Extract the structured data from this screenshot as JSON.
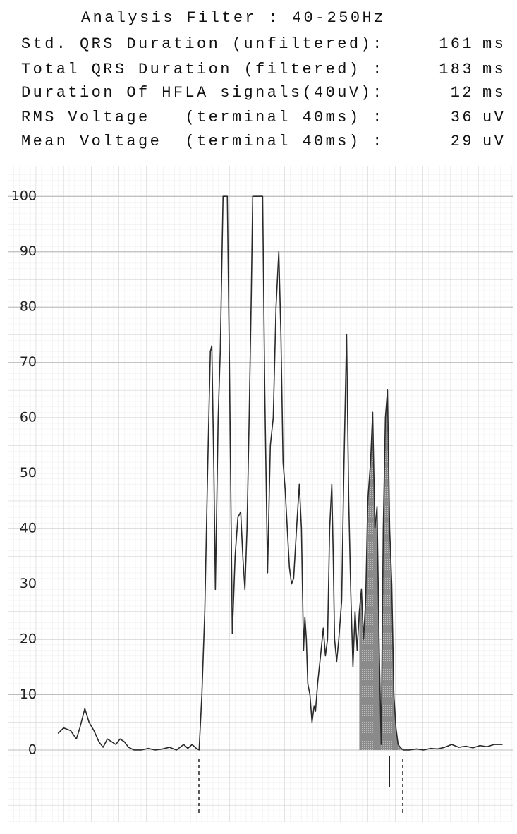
{
  "header": {
    "title": "Analysis Filter : 40-250Hz",
    "rows": [
      {
        "label": "Std. QRS Duration (unfiltered):",
        "value": 161,
        "unit": "ms"
      },
      {
        "label": "Total QRS Duration (filtered) :",
        "value": 183,
        "unit": "ms"
      },
      {
        "label": "Duration Of HFLA signals(40uV):",
        "value": 12,
        "unit": "ms"
      },
      {
        "label": "RMS Voltage   (terminal 40ms) :",
        "value": 36,
        "unit": "uV"
      },
      {
        "label": "Mean Voltage  (terminal 40ms) :",
        "value": 29,
        "unit": "uV"
      }
    ]
  },
  "chart_data": {
    "type": "line",
    "color": "#2a2a2a",
    "grid": true,
    "xlim": [
      -171,
      282
    ],
    "ylim": [
      -13,
      105.5
    ],
    "yticks": [
      0,
      10,
      20,
      30,
      40,
      50,
      60,
      70,
      80,
      90,
      100
    ],
    "x": [
      -126.6,
      -121.5,
      -115.2,
      -110.1,
      -107.0,
      -102.5,
      -98.7,
      -94.3,
      -89.9,
      -86.1,
      -82.3,
      -78.5,
      -74.7,
      -70.9,
      -67.1,
      -63.3,
      -58.2,
      -51.9,
      -45.6,
      -39.2,
      -32.9,
      -26.6,
      -20.3,
      -13.9,
      -10.1,
      -6.3,
      -2.5,
      0,
      2.5,
      5.1,
      7.6,
      10.1,
      11.4,
      13.3,
      14.6,
      17.1,
      19.0,
      21.5,
      25.3,
      27.2,
      29.8,
      32.3,
      34.8,
      37.3,
      39.2,
      41.1,
      43.0,
      44.9,
      46.8,
      48.1,
      57.0,
      58.9,
      61.4,
      63.9,
      66.5,
      69.0,
      71.5,
      73.4,
      75.3,
      77.2,
      79.1,
      81.0,
      82.9,
      84.8,
      87.4,
      89.9,
      91.8,
      93.7,
      94.9,
      96.2,
      97.5,
      99.4,
      101.3,
      103.2,
      104.4,
      106.3,
      108.9,
      111.4,
      113.3,
      115.2,
      117.1,
      119.0,
      120.3,
      121.5,
      123.4,
      125.3,
      127.9,
      129.8,
      132.3,
      134.2,
      136.1,
      138.0,
      139.9,
      141.8,
      143.7,
      145.6,
      147.5,
      149.4,
      151.3,
      153.8,
      155.7,
      157.7,
      159.6,
      161.4,
      163.3,
      165.2,
      167.1,
      169.0,
      170.9,
      172.8,
      174.7,
      176.6,
      178.5,
      180.4,
      183.0,
      188.6,
      195.0,
      201.3,
      207.6,
      214.0,
      220.3,
      226.6,
      232.9,
      239.3,
      245.6,
      251.9,
      258.3,
      264.6,
      272.2
    ],
    "values": [
      3,
      4,
      3.5,
      2,
      4,
      7.5,
      5,
      3.5,
      1.5,
      0.5,
      2,
      1.5,
      1,
      2,
      1.5,
      0.5,
      0,
      0,
      0.3,
      0,
      0.2,
      0.5,
      0,
      1,
      0.3,
      1,
      0.3,
      0,
      10,
      25,
      50,
      72,
      73,
      50,
      29,
      60,
      72,
      100,
      100,
      70,
      21,
      35,
      42,
      43,
      35,
      29,
      40,
      60,
      82,
      100,
      100,
      65,
      32,
      55,
      60,
      80,
      90,
      75,
      52,
      47,
      40,
      33,
      30,
      31,
      40,
      48,
      40,
      18,
      24,
      20,
      12,
      10,
      5,
      8,
      7,
      12,
      17,
      22,
      17,
      20,
      40,
      48,
      35,
      20,
      16,
      20,
      27,
      50,
      75,
      45,
      28,
      15,
      25,
      18,
      25,
      29,
      20,
      27,
      45,
      52,
      61,
      40,
      44,
      20,
      1,
      40,
      60,
      65,
      40,
      30,
      10,
      4,
      1,
      0.5,
      0,
      0,
      0.2,
      0,
      0.3,
      0.2,
      0.5,
      1,
      0.5,
      0.7,
      0.4,
      0.8,
      0.6,
      1,
      1
    ]
  }
}
